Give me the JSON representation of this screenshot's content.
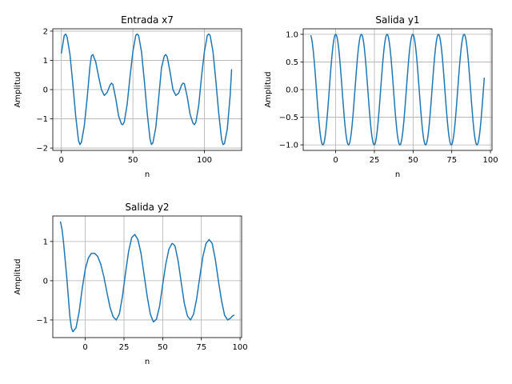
{
  "chart_data": [
    {
      "type": "line",
      "title": "Entrada x7",
      "xlabel": "n",
      "ylabel": "Amplitud",
      "xlim": [
        -6,
        126
      ],
      "ylim": [
        -2.08,
        2.08
      ],
      "xticks": [
        0,
        50,
        100
      ],
      "xtick_labels": [
        "0",
        "50",
        "100"
      ],
      "yticks": [
        -2,
        -1,
        0,
        1,
        2
      ],
      "ytick_labels": [
        "−2",
        "−1",
        "0",
        "1",
        "2"
      ],
      "grid": true,
      "color": "#1f77b4",
      "series": [
        {
          "x": [
            0,
            2,
            3,
            4,
            6,
            8,
            10,
            12,
            13,
            14,
            16,
            18,
            20,
            21,
            22,
            24,
            26,
            28,
            30,
            32,
            34,
            35,
            36,
            38,
            40,
            42,
            43,
            44,
            46,
            48,
            50,
            52,
            53,
            54,
            56,
            58,
            60,
            62,
            63,
            64,
            66,
            68,
            70,
            72,
            73,
            74,
            76,
            78,
            80,
            82,
            84,
            85,
            86,
            88,
            90,
            92,
            93,
            94,
            96,
            98,
            100,
            102,
            103,
            104,
            106,
            108,
            110,
            112,
            113,
            114,
            116,
            118,
            119
          ],
          "y": [
            1.25,
            1.85,
            1.9,
            1.8,
            1.2,
            0.2,
            -0.9,
            -1.75,
            -1.88,
            -1.8,
            -1.25,
            -0.3,
            0.8,
            1.15,
            1.2,
            0.95,
            0.45,
            0.0,
            -0.2,
            -0.1,
            0.15,
            0.22,
            0.18,
            -0.3,
            -0.9,
            -1.18,
            -1.2,
            -1.1,
            -0.5,
            0.45,
            1.3,
            1.85,
            1.9,
            1.85,
            1.3,
            0.3,
            -0.8,
            -1.7,
            -1.88,
            -1.82,
            -1.3,
            -0.3,
            0.75,
            1.15,
            1.2,
            1.12,
            0.6,
            0.0,
            -0.2,
            -0.12,
            0.15,
            0.22,
            0.2,
            -0.25,
            -0.85,
            -1.15,
            -1.2,
            -1.12,
            -0.55,
            0.45,
            1.3,
            1.85,
            1.9,
            1.85,
            1.3,
            0.3,
            -0.8,
            -1.7,
            -1.88,
            -1.85,
            -1.35,
            -0.2,
            0.68
          ]
        }
      ]
    },
    {
      "type": "line",
      "title": "Salida y1",
      "xlabel": "n",
      "ylabel": "Amplitud",
      "xlim": [
        -21,
        101
      ],
      "ylim": [
        -1.1,
        1.1
      ],
      "xticks": [
        0,
        25,
        50,
        75,
        100
      ],
      "xtick_labels": [
        "0",
        "25",
        "50",
        "75",
        "100"
      ],
      "yticks": [
        -1.0,
        -0.5,
        0.0,
        0.5,
        1.0
      ],
      "ytick_labels": [
        "−1.0",
        "−0.5",
        "0.0",
        "0.5",
        "1.0"
      ],
      "grid": true,
      "color": "#1f77b4",
      "series": [
        {
          "period": 16.6,
          "x_first": -16,
          "x_last": 96,
          "peaks_x": [
            -8,
            9,
            26,
            43,
            59,
            76,
            93
          ],
          "troughs_x": [
            -16,
            0,
            17,
            34,
            51,
            68,
            84
          ],
          "y_first": -0.97,
          "y_last": 0.48,
          "amplitude": 1.0
        }
      ]
    },
    {
      "type": "line",
      "title": "Salida y2",
      "xlabel": "n",
      "ylabel": "Amplitud",
      "xlim": [
        -21,
        101
      ],
      "ylim": [
        -1.45,
        1.65
      ],
      "xticks": [
        0,
        25,
        50,
        75,
        100
      ],
      "xtick_labels": [
        "0",
        "25",
        "50",
        "75",
        "100"
      ],
      "yticks": [
        -1,
        0,
        1
      ],
      "ytick_labels": [
        "−1",
        "0",
        "1"
      ],
      "grid": true,
      "color": "#1f77b4",
      "series": [
        {
          "x": [
            -16,
            -15,
            -14,
            -12,
            -10,
            -9,
            -8,
            -6,
            -4,
            -2,
            0,
            2,
            4,
            6,
            8,
            10,
            12,
            14,
            16,
            18,
            20,
            22,
            24,
            26,
            28,
            30,
            32,
            34,
            36,
            38,
            40,
            42,
            44,
            46,
            48,
            50,
            52,
            54,
            56,
            57,
            58,
            60,
            62,
            64,
            66,
            68,
            70,
            72,
            74,
            76,
            78,
            80,
            82,
            84,
            86,
            88,
            90,
            92,
            94,
            95,
            96
          ],
          "y": [
            1.5,
            1.3,
            0.95,
            0.1,
            -0.9,
            -1.2,
            -1.3,
            -1.2,
            -0.8,
            -0.2,
            0.3,
            0.58,
            0.7,
            0.7,
            0.62,
            0.42,
            0.1,
            -0.3,
            -0.68,
            -0.92,
            -1.0,
            -0.85,
            -0.4,
            0.2,
            0.75,
            1.1,
            1.18,
            1.05,
            0.7,
            0.15,
            -0.4,
            -0.85,
            -1.05,
            -0.98,
            -0.65,
            -0.1,
            0.42,
            0.8,
            0.95,
            0.93,
            0.88,
            0.5,
            -0.05,
            -0.58,
            -0.9,
            -1.0,
            -0.85,
            -0.45,
            0.1,
            0.62,
            0.95,
            1.05,
            0.95,
            0.55,
            0.0,
            -0.5,
            -0.88,
            -1.0,
            -0.95,
            -0.9,
            -0.88
          ]
        }
      ]
    }
  ]
}
